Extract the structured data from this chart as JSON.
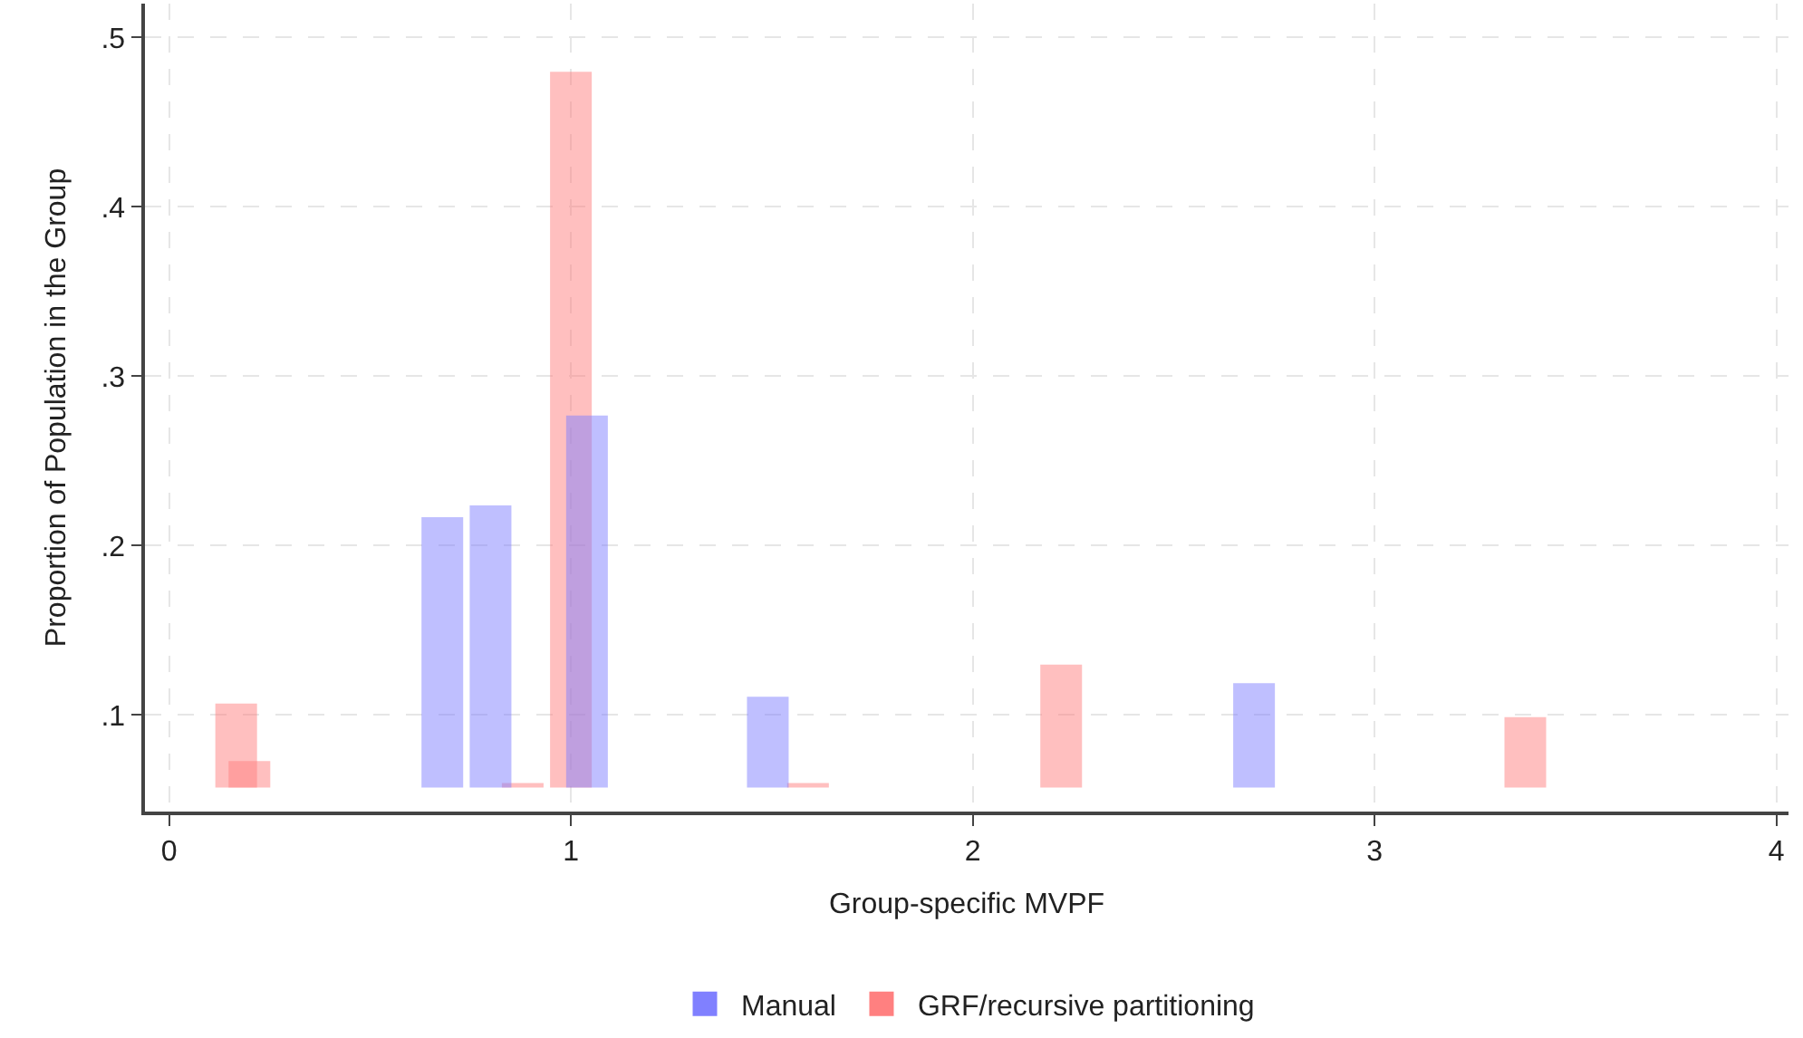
{
  "chart_data": {
    "type": "bar",
    "xlabel": "Group-specific MVPF",
    "ylabel": "Proportion of Population in the Group",
    "series": [
      {
        "name": "Manual",
        "color": "#8080ff",
        "x": [
          0.68,
          0.8,
          1.04,
          1.49,
          2.7
        ],
        "base": [
          0.058,
          0.058,
          0.058,
          0.058,
          0.058
        ],
        "values": [
          0.158,
          0.165,
          0.218,
          0.052,
          0.06
        ]
      },
      {
        "name": "GRF/recursive partitioning",
        "color": "#ff8080",
        "x": [
          0.167,
          0.2,
          0.88,
          1.0,
          1.59,
          2.22,
          3.375
        ],
        "base": [
          0.058,
          0.058,
          0.058,
          0.058,
          0.058,
          0.058,
          0.058
        ],
        "values": [
          0.048,
          0.014,
          0.001,
          0.421,
          0.001,
          0.071,
          0.04
        ]
      }
    ],
    "xlim": [
      -0.06,
      4.03
    ],
    "xticks": [
      0,
      1,
      2,
      3,
      4
    ],
    "ylim": [
      0.043,
      0.52
    ],
    "yticks": [
      {
        "value": 0.1,
        "label": ".1"
      },
      {
        "value": 0.2,
        "label": ".2"
      },
      {
        "value": 0.3,
        "label": ".3"
      },
      {
        "value": 0.4,
        "label": ".4"
      },
      {
        "value": 0.5,
        "label": ".5"
      }
    ],
    "grid": true,
    "legend": "bottom"
  }
}
